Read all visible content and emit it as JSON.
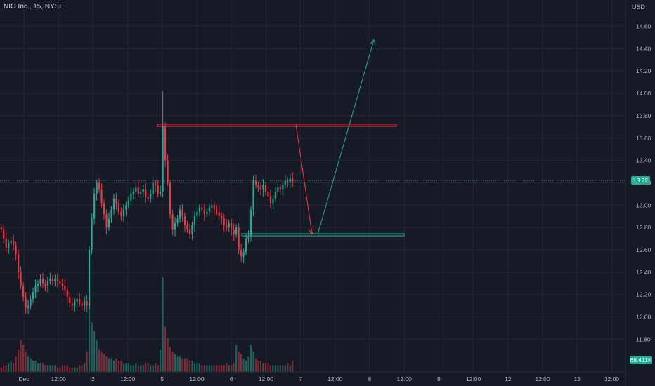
{
  "chart_data": {
    "type": "candlestick",
    "title": "NIO Inc., 15, NYSE",
    "y_unit": "USD",
    "ylim": [
      11.62,
      14.78
    ],
    "y_ticks": [
      "14.60",
      "14.40",
      "14.20",
      "14.00",
      "13.80",
      "13.60",
      "13.40",
      "13.20",
      "13.00",
      "12.80",
      "12.60",
      "12.40",
      "12.20",
      "12.00",
      "11.80"
    ],
    "x_ticks": [
      "Dec",
      "12:00",
      "2",
      "12:00",
      "5",
      "12:00",
      "6",
      "12:00",
      "7",
      "12:00",
      "8",
      "12:00",
      "9",
      "12:00",
      "12",
      "12:00",
      "13",
      "12:00"
    ],
    "last_price": "13.22",
    "last_volume": "68.411K",
    "closes": [
      12.78,
      12.7,
      12.62,
      12.66,
      12.68,
      12.64,
      12.56,
      12.4,
      12.28,
      12.18,
      12.08,
      12.1,
      12.16,
      12.22,
      12.28,
      12.3,
      12.34,
      12.3,
      12.28,
      12.32,
      12.34,
      12.32,
      12.34,
      12.32,
      12.3,
      12.28,
      12.24,
      12.18,
      12.12,
      12.1,
      12.14,
      12.16,
      12.12,
      12.1,
      12.14,
      12.1,
      12.6,
      12.88,
      13.1,
      13.2,
      13.14,
      13.02,
      12.92,
      12.8,
      12.88,
      12.96,
      13.06,
      13.02,
      12.94,
      12.9,
      12.96,
      13.0,
      13.04,
      13.1,
      13.12,
      13.16,
      13.1,
      13.12,
      13.14,
      13.08,
      13.06,
      13.1,
      13.2,
      13.18,
      13.1,
      13.12,
      13.7,
      13.4,
      13.2,
      12.92,
      12.78,
      12.84,
      12.88,
      12.96,
      12.9,
      12.82,
      12.78,
      12.74,
      12.82,
      12.9,
      12.94,
      12.98,
      12.96,
      12.92,
      12.94,
      12.98,
      13.0,
      12.96,
      12.94,
      12.9,
      12.88,
      12.82,
      12.8,
      12.84,
      12.78,
      12.74,
      12.8,
      12.6,
      12.54,
      12.58,
      12.7,
      12.72,
      12.96,
      13.22,
      13.18,
      13.16,
      13.14,
      13.18,
      13.12,
      13.08,
      13.02,
      13.06,
      13.12,
      13.16,
      13.14,
      13.18,
      13.22,
      13.2,
      13.24,
      13.22
    ],
    "volumes": [
      2,
      3,
      3,
      4,
      5,
      4,
      7,
      10,
      14,
      12,
      9,
      7,
      6,
      5,
      5,
      4,
      4,
      4,
      3,
      3,
      3,
      3,
      3,
      2,
      2,
      3,
      3,
      3,
      2,
      2,
      2,
      2,
      3,
      3,
      4,
      9,
      31,
      22,
      18,
      14,
      10,
      9,
      8,
      7,
      6,
      6,
      5,
      6,
      5,
      5,
      4,
      4,
      4,
      3,
      3,
      4,
      3,
      3,
      3,
      4,
      4,
      3,
      3,
      4,
      3,
      10,
      42,
      20,
      15,
      11,
      9,
      8,
      7,
      7,
      6,
      6,
      6,
      5,
      5,
      4,
      4,
      4,
      3,
      3,
      3,
      3,
      3,
      3,
      3,
      3,
      3,
      3,
      4,
      3,
      3,
      4,
      12,
      9,
      8,
      6,
      5,
      7,
      12,
      9,
      6,
      5,
      5,
      4,
      4,
      4,
      3,
      3,
      3,
      3,
      3,
      3,
      3,
      4,
      3,
      5
    ],
    "annotations": {
      "resistance_zone": {
        "low": 13.705,
        "high": 13.725
      },
      "support_zone": {
        "low": 12.725,
        "high": 12.745
      },
      "projection_down": {
        "from": 13.72,
        "to": 12.74,
        "color": "#f23645"
      },
      "projection_up": {
        "from": 12.74,
        "to": 14.48,
        "color": "#22ab94"
      }
    }
  },
  "colors": {
    "background": "#161a25",
    "grid": "#232734",
    "up": "#22ab94",
    "down": "#f23645",
    "price_line": "#22ab94"
  }
}
